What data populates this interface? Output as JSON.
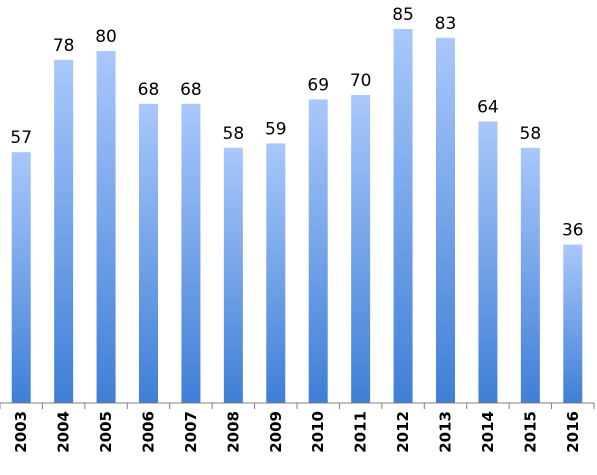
{
  "chart_data": {
    "type": "bar",
    "title": "",
    "xlabel": "",
    "ylabel": "",
    "categories": [
      "2003",
      "2004",
      "2005",
      "2006",
      "2007",
      "2008",
      "2009",
      "2010",
      "2011",
      "2012",
      "2013",
      "2014",
      "2015",
      "2016"
    ],
    "values": [
      57,
      78,
      80,
      68,
      68,
      58,
      59,
      69,
      70,
      85,
      83,
      64,
      58,
      36
    ],
    "value_labels": [
      "57",
      "78",
      "80",
      "68",
      "68",
      "58",
      "59",
      "69",
      "70",
      "85",
      "83",
      "64",
      "58",
      "36"
    ],
    "ylim": [
      0,
      90
    ],
    "grid": false,
    "legend": "none",
    "colors": {
      "bar_top": "#a9c8fb",
      "bar_bottom": "#3f7fd6",
      "axis": "#7f7f7f"
    }
  }
}
